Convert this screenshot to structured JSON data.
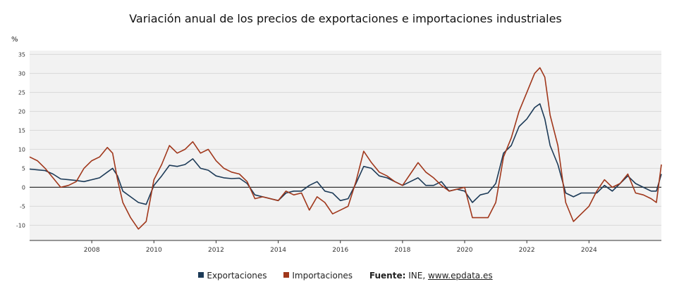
{
  "chart_data": {
    "type": "line",
    "title": "Variación anual de los precios de exportaciones e importaciones industriales",
    "ylabel": "%",
    "xlim": [
      2006.0,
      2026.33
    ],
    "ylim": [
      -14,
      36
    ],
    "y_ticks": [
      -10,
      -5,
      0,
      5,
      10,
      15,
      20,
      25,
      30,
      35
    ],
    "x_ticks": [
      2008,
      2010,
      2012,
      2014,
      2016,
      2018,
      2020,
      2022,
      2024
    ],
    "grid": true,
    "legend_position": "bottom",
    "series": [
      {
        "name": "Exportaciones",
        "color": "#1c3a57",
        "x": [
          2006.0,
          2006.25,
          2006.5,
          2006.75,
          2007.0,
          2007.25,
          2007.5,
          2007.75,
          2008.0,
          2008.25,
          2008.5,
          2008.67,
          2008.83,
          2009.0,
          2009.25,
          2009.5,
          2009.75,
          2010.0,
          2010.25,
          2010.5,
          2010.75,
          2011.0,
          2011.25,
          2011.5,
          2011.75,
          2012.0,
          2012.25,
          2012.5,
          2012.75,
          2013.0,
          2013.25,
          2013.5,
          2013.75,
          2014.0,
          2014.25,
          2014.5,
          2014.75,
          2015.0,
          2015.25,
          2015.5,
          2015.75,
          2016.0,
          2016.25,
          2016.5,
          2016.75,
          2017.0,
          2017.25,
          2017.5,
          2017.75,
          2018.0,
          2018.25,
          2018.5,
          2018.75,
          2019.0,
          2019.25,
          2019.5,
          2019.75,
          2020.0,
          2020.25,
          2020.5,
          2020.75,
          2021.0,
          2021.25,
          2021.5,
          2021.75,
          2022.0,
          2022.25,
          2022.42,
          2022.58,
          2022.75,
          2023.0,
          2023.25,
          2023.5,
          2023.75,
          2024.0,
          2024.25,
          2024.5,
          2024.75,
          2025.0,
          2025.25,
          2025.5,
          2025.75,
          2026.0,
          2026.17,
          2026.33
        ],
        "y": [
          4.8,
          4.6,
          4.4,
          3.5,
          2.2,
          2.0,
          1.8,
          1.5,
          2.0,
          2.5,
          4.0,
          5.0,
          3.0,
          -1.0,
          -2.5,
          -4.0,
          -4.5,
          0.5,
          3.0,
          5.8,
          5.5,
          6.0,
          7.5,
          5.0,
          4.5,
          3.0,
          2.5,
          2.3,
          2.4,
          1.0,
          -2.0,
          -2.5,
          -3.0,
          -3.5,
          -1.5,
          -1.0,
          -1.0,
          0.5,
          1.5,
          -1.0,
          -1.5,
          -3.5,
          -3.0,
          1.0,
          5.5,
          5.0,
          3.0,
          2.5,
          1.5,
          0.5,
          1.5,
          2.5,
          0.5,
          0.5,
          1.5,
          -1.0,
          -0.5,
          -1.0,
          -4.0,
          -2.0,
          -1.5,
          1.0,
          9.0,
          11.0,
          16.0,
          18.0,
          21.0,
          22.0,
          18.0,
          11.0,
          6.0,
          -1.5,
          -2.5,
          -1.5,
          -1.5,
          -1.5,
          0.5,
          -1.0,
          1.0,
          3.0,
          1.0,
          0.0,
          -1.0,
          -1.0,
          3.5
        ]
      },
      {
        "name": "Importaciones",
        "color": "#a0371b",
        "x": [
          2006.0,
          2006.25,
          2006.5,
          2006.75,
          2007.0,
          2007.25,
          2007.5,
          2007.75,
          2008.0,
          2008.25,
          2008.5,
          2008.67,
          2008.83,
          2009.0,
          2009.25,
          2009.5,
          2009.75,
          2010.0,
          2010.25,
          2010.5,
          2010.75,
          2011.0,
          2011.25,
          2011.5,
          2011.75,
          2012.0,
          2012.25,
          2012.5,
          2012.75,
          2013.0,
          2013.25,
          2013.5,
          2013.75,
          2014.0,
          2014.25,
          2014.5,
          2014.75,
          2015.0,
          2015.25,
          2015.5,
          2015.75,
          2016.0,
          2016.25,
          2016.5,
          2016.75,
          2017.0,
          2017.25,
          2017.5,
          2017.75,
          2018.0,
          2018.25,
          2018.5,
          2018.75,
          2019.0,
          2019.25,
          2019.5,
          2019.75,
          2020.0,
          2020.25,
          2020.5,
          2020.75,
          2021.0,
          2021.25,
          2021.5,
          2021.75,
          2022.0,
          2022.25,
          2022.42,
          2022.58,
          2022.75,
          2023.0,
          2023.25,
          2023.5,
          2023.75,
          2024.0,
          2024.25,
          2024.5,
          2024.75,
          2025.0,
          2025.25,
          2025.5,
          2025.75,
          2026.0,
          2026.17,
          2026.33
        ],
        "y": [
          8.0,
          7.0,
          5.0,
          2.5,
          0.0,
          0.5,
          1.5,
          5.0,
          7.0,
          8.0,
          10.5,
          9.0,
          2.0,
          -4.0,
          -8.0,
          -11.0,
          -9.0,
          2.0,
          6.0,
          11.0,
          9.0,
          10.0,
          12.0,
          9.0,
          10.0,
          7.0,
          5.0,
          4.0,
          3.5,
          1.5,
          -3.0,
          -2.5,
          -3.0,
          -3.5,
          -1.0,
          -2.0,
          -1.5,
          -6.0,
          -2.5,
          -4.0,
          -7.0,
          -6.0,
          -5.0,
          1.5,
          9.5,
          6.5,
          4.0,
          3.0,
          1.5,
          0.5,
          3.5,
          6.5,
          4.0,
          2.5,
          0.5,
          -1.0,
          -0.5,
          0.0,
          -8.0,
          -8.0,
          -8.0,
          -4.0,
          8.0,
          13.0,
          20.0,
          25.0,
          30.0,
          31.5,
          29.0,
          19.0,
          11.0,
          -4.0,
          -9.0,
          -7.0,
          -5.0,
          -1.0,
          2.0,
          0.0,
          1.0,
          3.5,
          -1.5,
          -2.0,
          -3.0,
          -4.0,
          6.0
        ]
      }
    ]
  },
  "legend": {
    "exports_label": "Exportaciones",
    "imports_label": "Importaciones",
    "source_label": "Fuente:",
    "source_text": "INE,",
    "source_link": "www.epdata.es"
  }
}
